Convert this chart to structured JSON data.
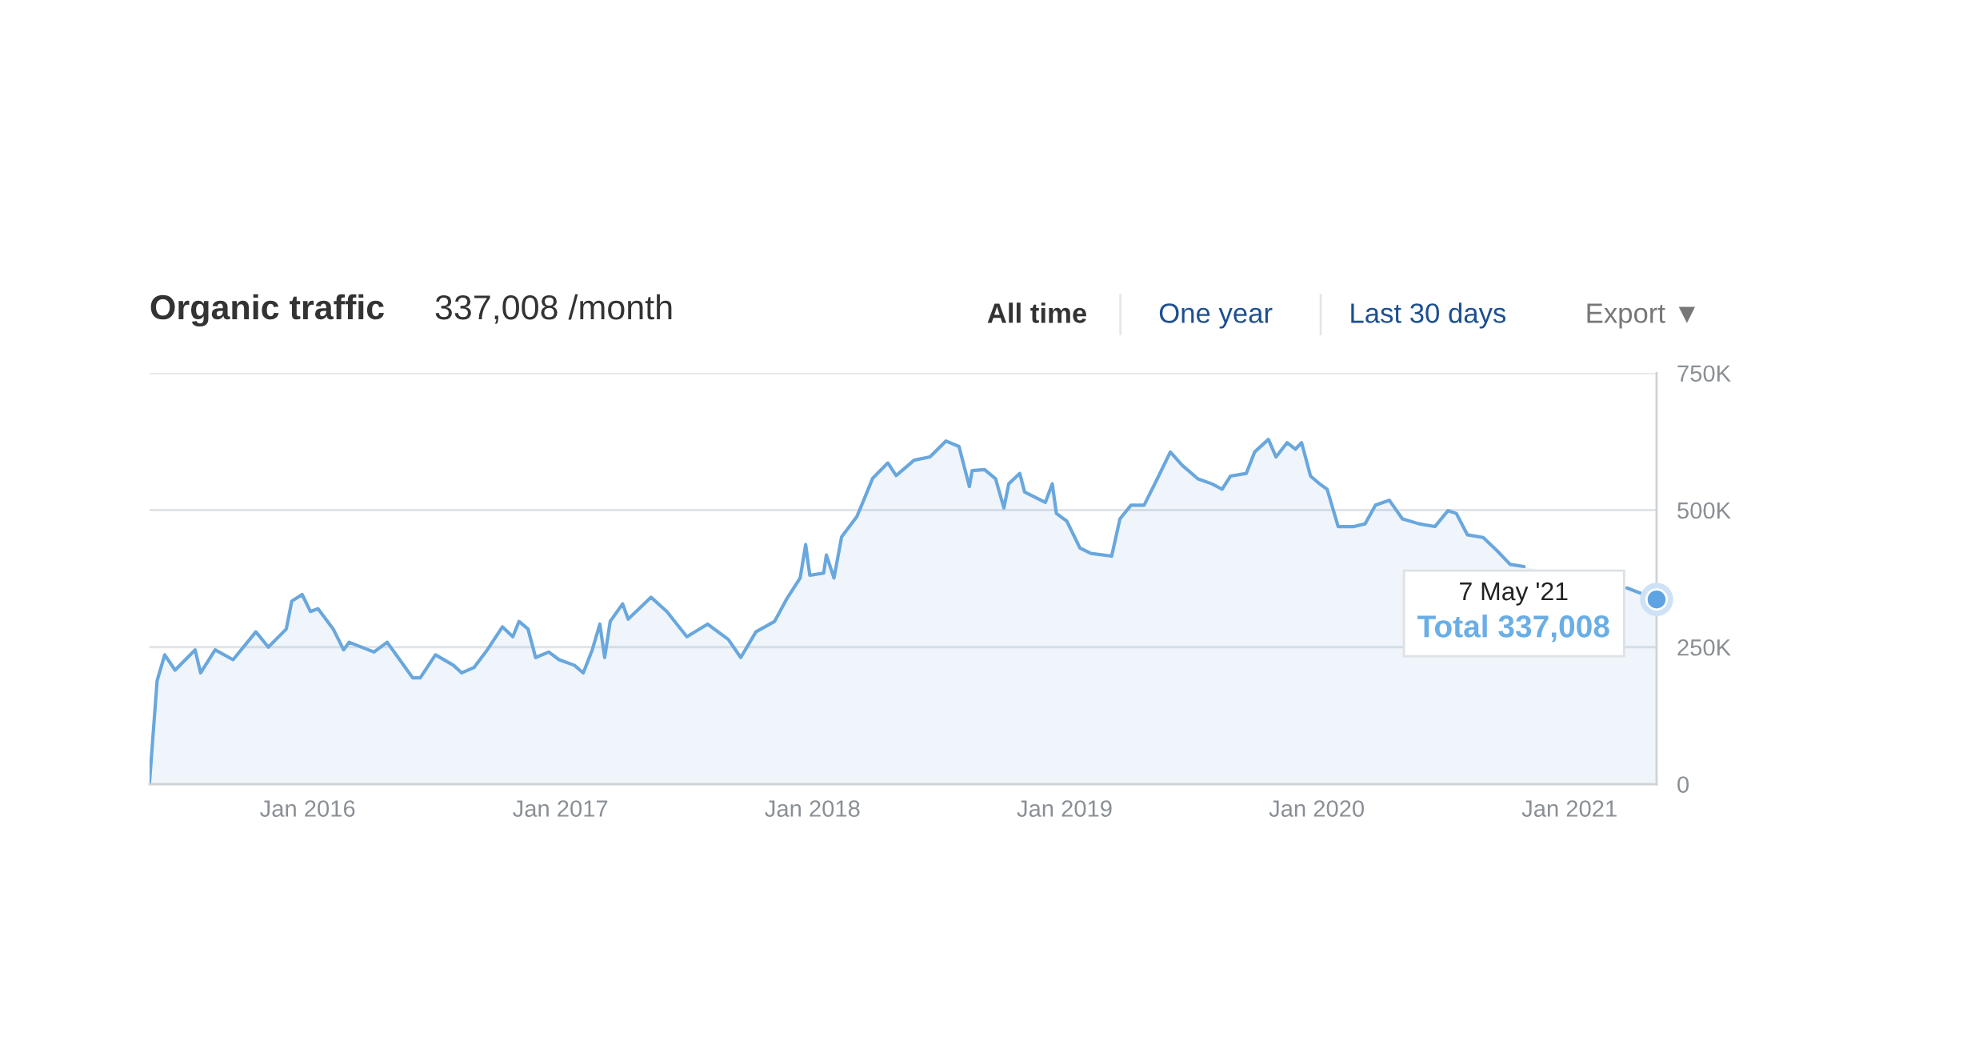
{
  "chart_data": {
    "type": "area",
    "title": "Organic traffic",
    "subtitle": "337,008 /month",
    "x": [
      "2015-05-17",
      "2015-05-28",
      "2015-06-08",
      "2015-06-23",
      "2015-07-22",
      "2015-07-30",
      "2015-08-20",
      "2015-09-15",
      "2015-10-18",
      "2015-11-05",
      "2015-12-01",
      "2015-12-09",
      "2015-12-24",
      "2016-01-05",
      "2016-01-16",
      "2016-02-07",
      "2016-02-22",
      "2016-03-01",
      "2016-04-06",
      "2016-04-25",
      "2016-06-01",
      "2016-06-12",
      "2016-07-04",
      "2016-07-30",
      "2016-08-11",
      "2016-08-29",
      "2016-09-17",
      "2016-10-09",
      "2016-10-24",
      "2016-11-02",
      "2016-11-15",
      "2016-11-26",
      "2016-12-15",
      "2016-12-30",
      "2017-01-21",
      "2017-02-03",
      "2017-02-16",
      "2017-02-27",
      "2017-03-06",
      "2017-03-14",
      "2017-04-01",
      "2017-04-09",
      "2017-05-12",
      "2017-06-04",
      "2017-07-03",
      "2017-08-02",
      "2017-09-01",
      "2017-09-19",
      "2017-10-11",
      "2017-11-07",
      "2017-11-25",
      "2017-12-14",
      "2017-12-22",
      "2017-12-28",
      "2018-01-17",
      "2018-01-21",
      "2018-02-01",
      "2018-02-12",
      "2018-03-06",
      "2018-03-17",
      "2018-03-29",
      "2018-04-20",
      "2018-05-02",
      "2018-05-28",
      "2018-06-20",
      "2018-07-13",
      "2018-08-01",
      "2018-08-16",
      "2018-08-20",
      "2018-09-07",
      "2018-09-23",
      "2018-10-05",
      "2018-10-12",
      "2018-10-28",
      "2018-11-04",
      "2018-12-04",
      "2018-12-14",
      "2018-12-20",
      "2019-01-04",
      "2019-01-23",
      "2019-02-08",
      "2019-03-10",
      "2019-03-22",
      "2019-04-07",
      "2019-04-26",
      "2019-05-15",
      "2019-06-03",
      "2019-06-20",
      "2019-07-13",
      "2019-08-02",
      "2019-08-17",
      "2019-08-29",
      "2019-09-21",
      "2019-10-03",
      "2019-10-23",
      "2019-11-03",
      "2019-11-19",
      "2019-12-01",
      "2019-12-10",
      "2019-12-23",
      "2020-01-05",
      "2020-01-16",
      "2020-02-01",
      "2020-02-24",
      "2020-03-11",
      "2020-03-26",
      "2020-04-15",
      "2020-05-04",
      "2020-05-28",
      "2020-06-20",
      "2020-07-09",
      "2020-07-21",
      "2020-08-06",
      "2020-08-29",
      "2020-09-18",
      "2020-10-07",
      "2020-10-27",
      "2021-01-01",
      "2021-03-25",
      "2021-05-07"
    ],
    "series": [
      {
        "color": "#69a7dd",
        "values": [
          3000,
          189000,
          236000,
          208000,
          245000,
          203000,
          245000,
          227000,
          278000,
          250000,
          283000,
          334000,
          346000,
          315000,
          320000,
          283000,
          245000,
          259000,
          241000,
          259000,
          194000,
          194000,
          236000,
          217000,
          203000,
          213000,
          245000,
          287000,
          269000,
          297000,
          283000,
          231000,
          241000,
          227000,
          217000,
          203000,
          245000,
          292000,
          231000,
          297000,
          329000,
          301000,
          341000,
          315000,
          269000,
          292000,
          264000,
          231000,
          278000,
          297000,
          339000,
          376000,
          437000,
          381000,
          385000,
          418000,
          376000,
          451000,
          488000,
          521000,
          558000,
          586000,
          563000,
          591000,
          597000,
          626000,
          616000,
          543000,
          572000,
          574000,
          557000,
          504000,
          548000,
          567000,
          533000,
          514000,
          548000,
          494000,
          480000,
          431000,
          421000,
          416000,
          484000,
          509000,
          509000,
          557000,
          606000,
          582000,
          557000,
          548000,
          538000,
          562000,
          567000,
          606000,
          629000,
          597000,
          623000,
          611000,
          623000,
          562000,
          548000,
          538000,
          470000,
          470000,
          475000,
          509000,
          518000,
          484000,
          475000,
          470000,
          499000,
          494000,
          455000,
          450000,
          426000,
          401000,
          397000,
          null,
          358000,
          337008
        ]
      }
    ],
    "xlim": [
      "2015-05-17",
      "2021-05-07"
    ],
    "xticks": [
      {
        "value": "2016-01-01",
        "label": "Jan 2016"
      },
      {
        "value": "2017-01-01",
        "label": "Jan 2017"
      },
      {
        "value": "2018-01-01",
        "label": "Jan 2018"
      },
      {
        "value": "2019-01-01",
        "label": "Jan 2019"
      },
      {
        "value": "2020-01-01",
        "label": "Jan 2020"
      },
      {
        "value": "2021-01-01",
        "label": "Jan 2021"
      }
    ],
    "ylim": [
      0,
      750000
    ],
    "yticks": [
      0,
      {
        "value": 250000,
        "label": "250K"
      },
      {
        "value": 500000,
        "label": "500K"
      },
      {
        "value": 750000,
        "label": "750K"
      }
    ],
    "grid": "y",
    "legend": false,
    "annotations": [
      "7 May '21",
      "Total 337,008",
      "All time",
      "One year",
      "Last 30 days",
      "Export ▼"
    ]
  }
}
